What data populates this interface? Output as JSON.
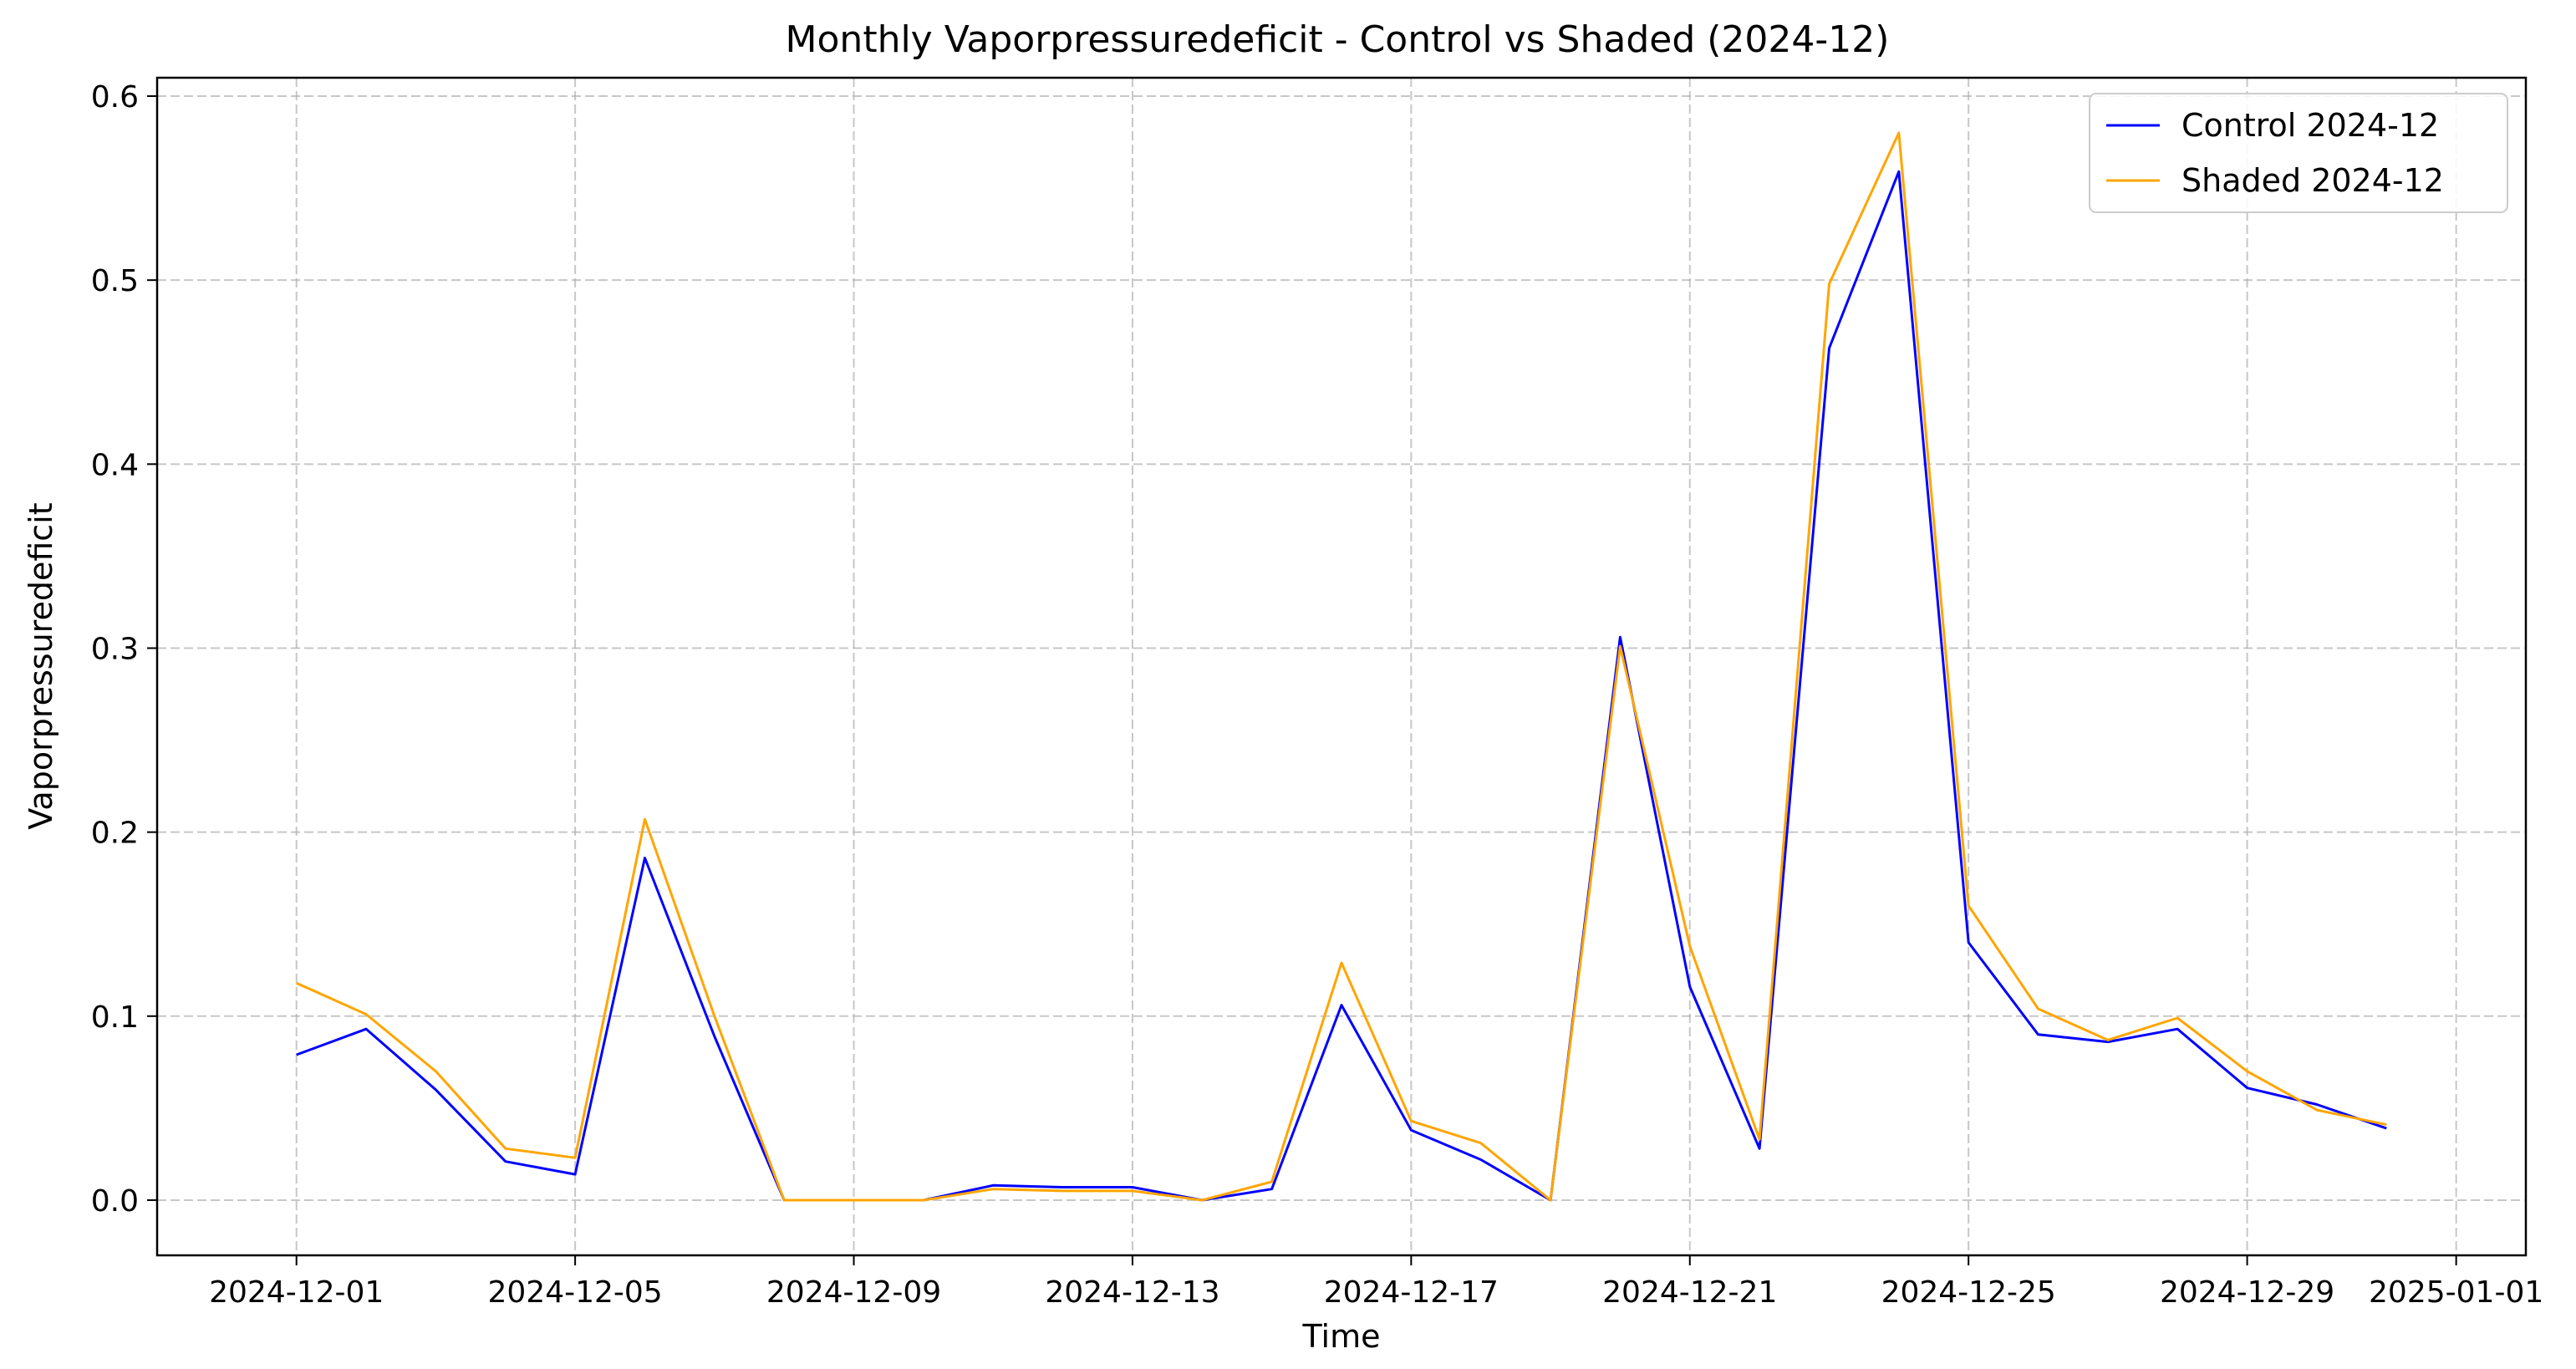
{
  "chart_data": {
    "type": "line",
    "title": "Monthly Vaporpressuredeficit - Control vs Shaded (2024-12)",
    "xlabel": "Time",
    "ylabel": "Vaporpressuredeficit",
    "x_type": "date",
    "xlim": [
      "2024-11-29",
      "2025-01-02"
    ],
    "ylim": [
      -0.03,
      0.61
    ],
    "x_ticks": [
      "2024-12-01",
      "2024-12-05",
      "2024-12-09",
      "2024-12-13",
      "2024-12-17",
      "2024-12-21",
      "2024-12-25",
      "2024-12-29",
      "2025-01-01"
    ],
    "y_ticks": [
      "0.0",
      "0.1",
      "0.2",
      "0.3",
      "0.4",
      "0.5",
      "0.6"
    ],
    "grid": true,
    "legend_position": "top-right",
    "x": [
      "2024-12-01",
      "2024-12-02",
      "2024-12-03",
      "2024-12-04",
      "2024-12-05",
      "2024-12-06",
      "2024-12-07",
      "2024-12-08",
      "2024-12-09",
      "2024-12-10",
      "2024-12-11",
      "2024-12-12",
      "2024-12-13",
      "2024-12-14",
      "2024-12-15",
      "2024-12-16",
      "2024-12-17",
      "2024-12-18",
      "2024-12-19",
      "2024-12-20",
      "2024-12-21",
      "2024-12-22",
      "2024-12-23",
      "2024-12-24",
      "2024-12-25",
      "2024-12-26",
      "2024-12-27",
      "2024-12-28",
      "2024-12-29",
      "2024-12-30",
      "2024-12-31"
    ],
    "series": [
      {
        "name": "Control 2024-12",
        "color": "#0000ff",
        "values": [
          0.079,
          0.093,
          0.06,
          0.021,
          0.014,
          0.186,
          0.089,
          0.0,
          0.0,
          0.0,
          0.008,
          0.007,
          0.007,
          0.0,
          0.006,
          0.106,
          0.038,
          0.022,
          0.0,
          0.306,
          0.116,
          0.028,
          0.463,
          0.559,
          0.14,
          0.09,
          0.086,
          0.093,
          0.061,
          0.052,
          0.039
        ]
      },
      {
        "name": "Shaded 2024-12",
        "color": "#ffa500",
        "values": [
          0.118,
          0.101,
          0.07,
          0.028,
          0.023,
          0.207,
          0.1,
          0.0,
          0.0,
          0.0,
          0.006,
          0.005,
          0.005,
          0.0,
          0.01,
          0.129,
          0.043,
          0.031,
          0.0,
          0.301,
          0.138,
          0.033,
          0.498,
          0.58,
          0.16,
          0.104,
          0.087,
          0.099,
          0.07,
          0.049,
          0.041
        ]
      }
    ]
  }
}
